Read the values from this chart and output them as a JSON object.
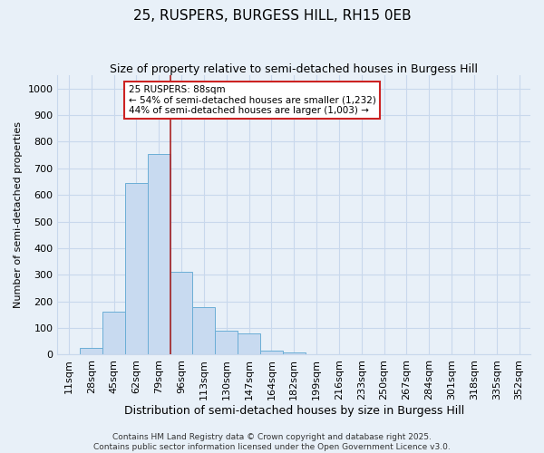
{
  "title": "25, RUSPERS, BURGESS HILL, RH15 0EB",
  "subtitle": "Size of property relative to semi-detached houses in Burgess Hill",
  "xlabel": "Distribution of semi-detached houses by size in Burgess Hill",
  "ylabel": "Number of semi-detached properties",
  "bar_values": [
    0,
    25,
    160,
    645,
    755,
    310,
    180,
    90,
    80,
    15,
    10,
    0,
    0,
    0,
    0,
    0,
    0,
    0,
    0,
    0,
    0
  ],
  "bin_labels": [
    "11sqm",
    "28sqm",
    "45sqm",
    "62sqm",
    "79sqm",
    "96sqm",
    "113sqm",
    "130sqm",
    "147sqm",
    "164sqm",
    "182sqm",
    "199sqm",
    "216sqm",
    "233sqm",
    "250sqm",
    "267sqm",
    "284sqm",
    "301sqm",
    "318sqm",
    "335sqm",
    "352sqm"
  ],
  "bar_color": "#c8daf0",
  "bar_edge_color": "#6baed6",
  "vline_x": 4.5,
  "vline_color": "#aa2222",
  "ann_line1": "25 RUSPERS: 88sqm",
  "ann_line2": "← 54% of semi-detached houses are smaller (1,232)",
  "ann_line3": "44% of semi-detached houses are larger (1,003) →",
  "annotation_box_color": "#ffffff",
  "annotation_box_edge": "#cc2222",
  "ylim": [
    0,
    1050
  ],
  "yticks": [
    0,
    100,
    200,
    300,
    400,
    500,
    600,
    700,
    800,
    900,
    1000
  ],
  "grid_color": "#c8d8ec",
  "bg_color": "#e8f0f8",
  "footer_text": "Contains HM Land Registry data © Crown copyright and database right 2025.\nContains public sector information licensed under the Open Government Licence v3.0.",
  "title_fontsize": 11,
  "subtitle_fontsize": 9,
  "xlabel_fontsize": 9,
  "ylabel_fontsize": 8,
  "tick_fontsize": 8,
  "footer_fontsize": 6.5
}
